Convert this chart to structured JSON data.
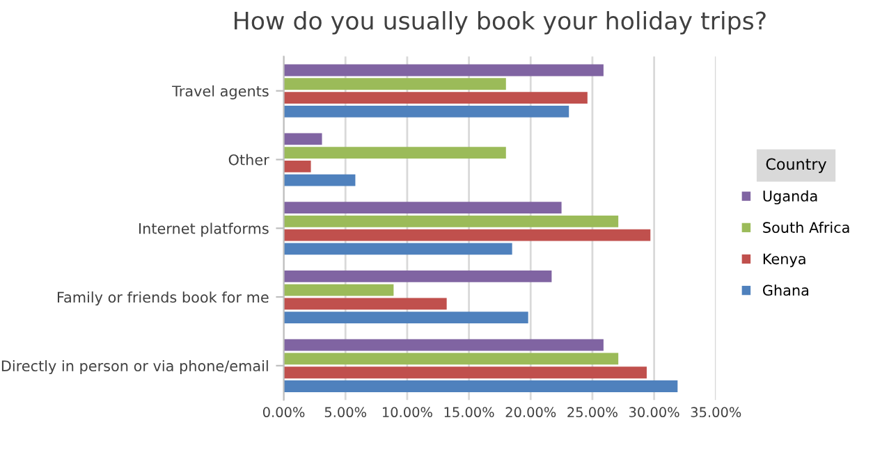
{
  "chart_data": {
    "type": "bar",
    "orientation": "horizontal",
    "title": "How do you usually book your holiday trips?",
    "categories": [
      "Travel agents",
      "Other",
      "Internet platforms",
      "Family or friends book for me",
      "Directly in person or via phone/email"
    ],
    "series": [
      {
        "name": "Uganda",
        "color": "#8064a2",
        "values": [
          25.9,
          3.1,
          22.5,
          21.7,
          25.9
        ]
      },
      {
        "name": "South Africa",
        "color": "#9bbb59",
        "values": [
          18.0,
          18.0,
          27.1,
          8.9,
          27.1
        ]
      },
      {
        "name": "Kenya",
        "color": "#c0504d",
        "values": [
          24.6,
          2.2,
          29.7,
          13.2,
          29.4
        ]
      },
      {
        "name": "Ghana",
        "color": "#4f81bd",
        "values": [
          23.1,
          5.8,
          18.5,
          19.8,
          31.9
        ]
      }
    ],
    "xlim": [
      0,
      35
    ],
    "xticks": [
      {
        "value": 0,
        "label": "0.00%"
      },
      {
        "value": 5,
        "label": "5.00%"
      },
      {
        "value": 10,
        "label": "10.00%"
      },
      {
        "value": 15,
        "label": "15.00%"
      },
      {
        "value": 20,
        "label": "20.00%"
      },
      {
        "value": 25,
        "label": "25.00%"
      },
      {
        "value": 30,
        "label": "30.00%"
      },
      {
        "value": 35,
        "label": "35.00%"
      }
    ],
    "grid": "x",
    "legend": "right",
    "legend_title": "Country"
  }
}
